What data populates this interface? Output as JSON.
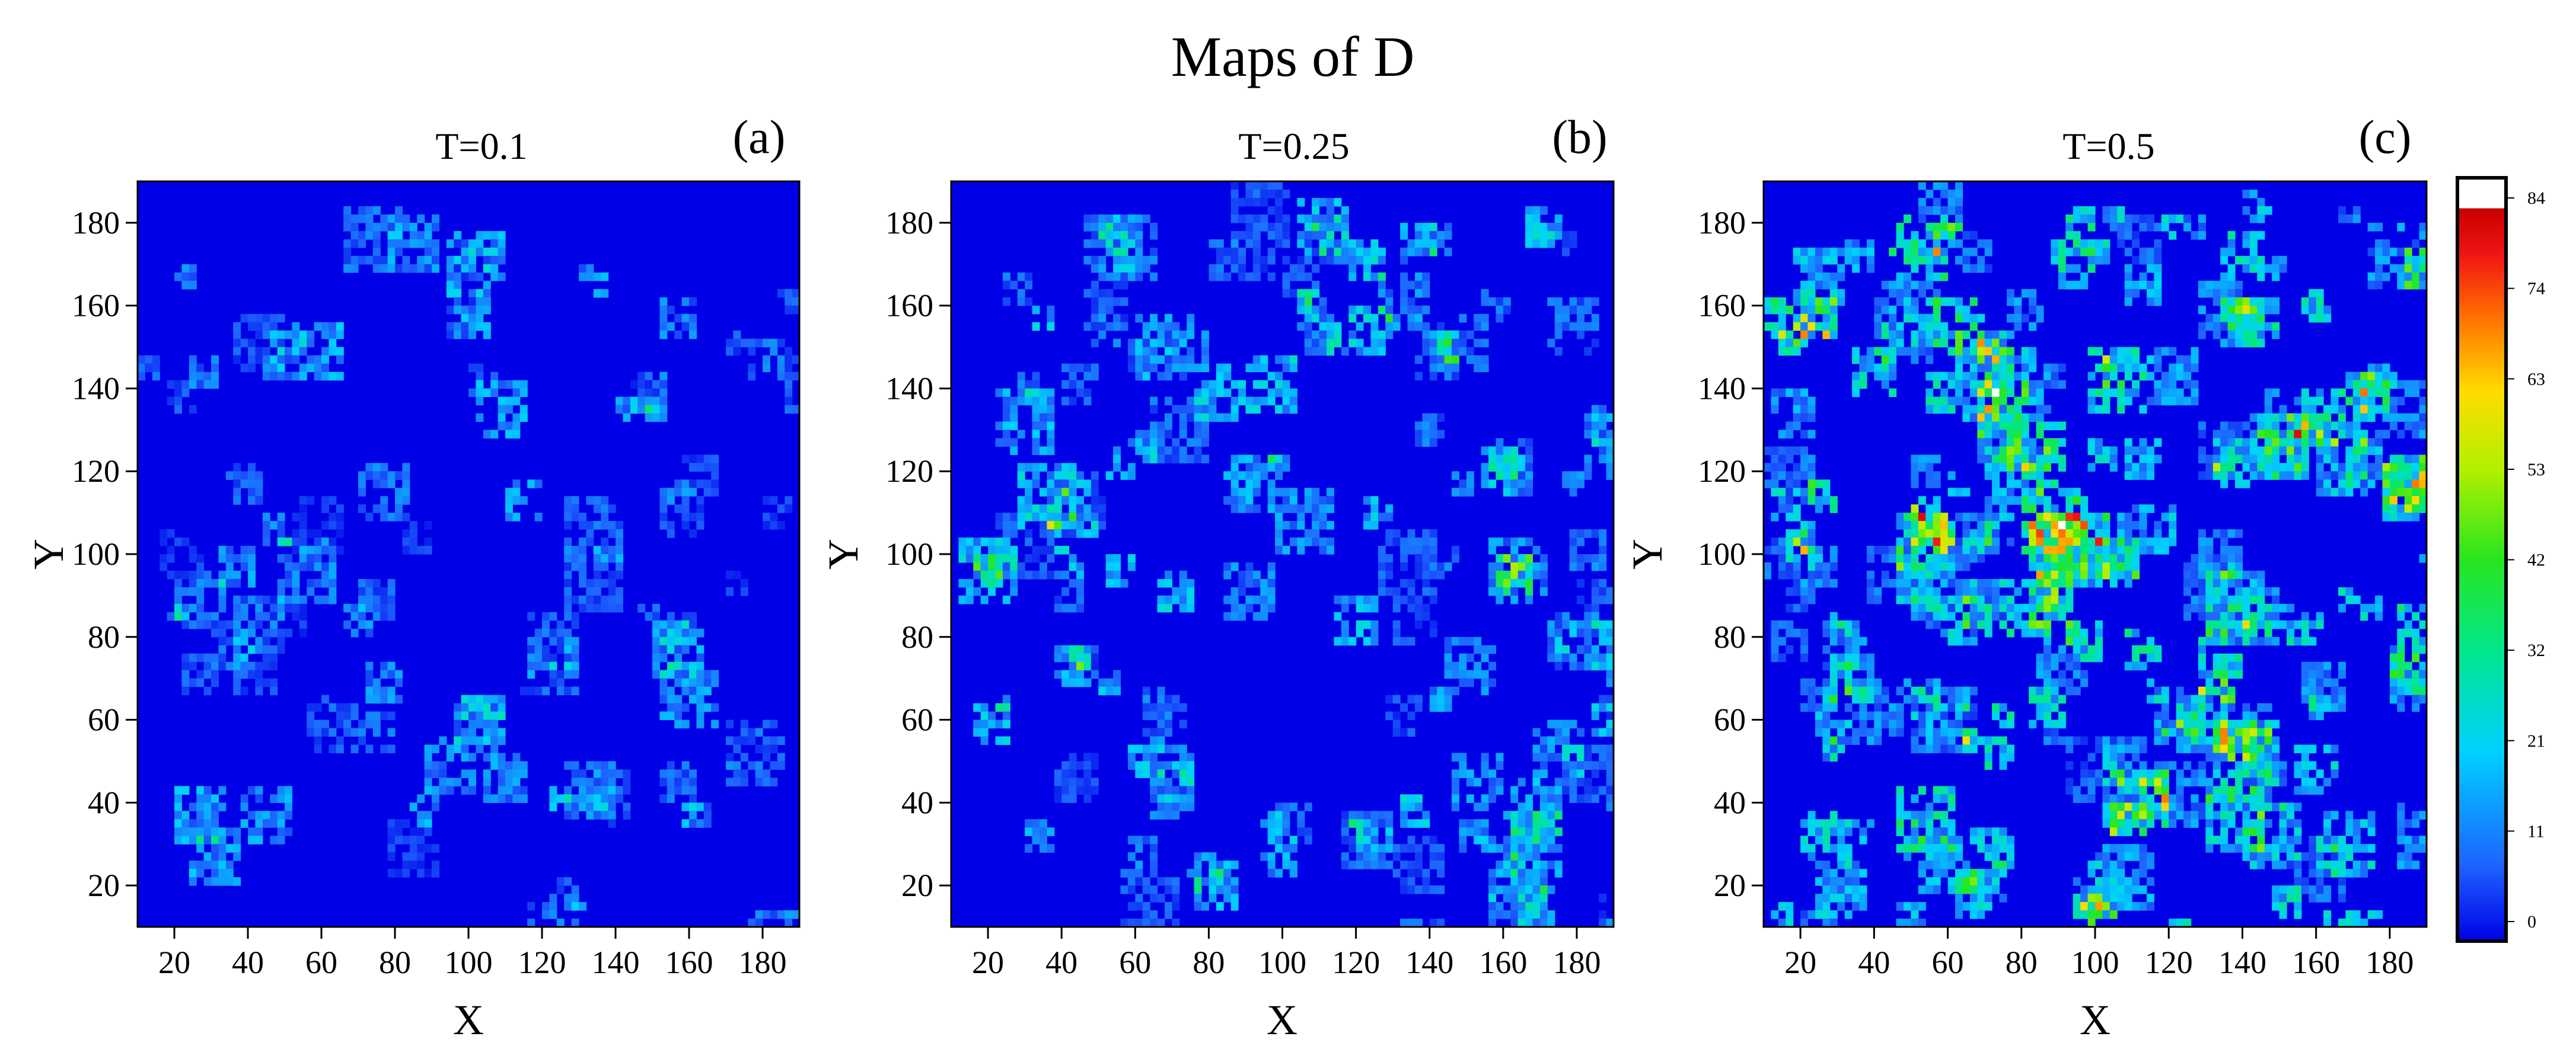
{
  "chart_data": {
    "type": "heatmap",
    "title": "Maps of D",
    "colorbar": {
      "ticks": [
        "84",
        "74",
        "63",
        "53",
        "42",
        "32",
        "21",
        "11",
        "0"
      ],
      "range": [
        0,
        84
      ],
      "stops": [
        "#0000e6",
        "#1e64ff",
        "#00d2ff",
        "#00e68c",
        "#28e61e",
        "#b4f000",
        "#ffdc00",
        "#ff6e00",
        "#f01414",
        "#c80000",
        "#ffffff"
      ]
    },
    "panels": [
      {
        "label": "(a)",
        "subtitle": "T=0.1",
        "xlabel": "X",
        "ylabel": "Y",
        "xlim": [
          10,
          190
        ],
        "ylim": [
          10,
          190
        ],
        "xticks": [
          "20",
          "40",
          "60",
          "80",
          "100",
          "120",
          "140",
          "160",
          "180"
        ],
        "yticks": [
          "20",
          "40",
          "60",
          "80",
          "100",
          "120",
          "140",
          "160",
          "180"
        ],
        "temperature": 0.1
      },
      {
        "label": "(b)",
        "subtitle": "T=0.25",
        "xlabel": "X",
        "ylabel": "Y",
        "xlim": [
          10,
          190
        ],
        "ylim": [
          10,
          190
        ],
        "xticks": [
          "20",
          "40",
          "60",
          "80",
          "100",
          "120",
          "140",
          "160",
          "180"
        ],
        "yticks": [
          "20",
          "40",
          "60",
          "80",
          "100",
          "120",
          "140",
          "160",
          "180"
        ],
        "temperature": 0.25
      },
      {
        "label": "(c)",
        "subtitle": "T=0.5",
        "xlabel": "X",
        "ylabel": "Y",
        "xlim": [
          10,
          190
        ],
        "ylim": [
          10,
          190
        ],
        "xticks": [
          "20",
          "40",
          "60",
          "80",
          "100",
          "120",
          "140",
          "160",
          "180"
        ],
        "yticks": [
          "20",
          "40",
          "60",
          "80",
          "100",
          "120",
          "140",
          "160",
          "180"
        ],
        "temperature": 0.5
      }
    ]
  }
}
